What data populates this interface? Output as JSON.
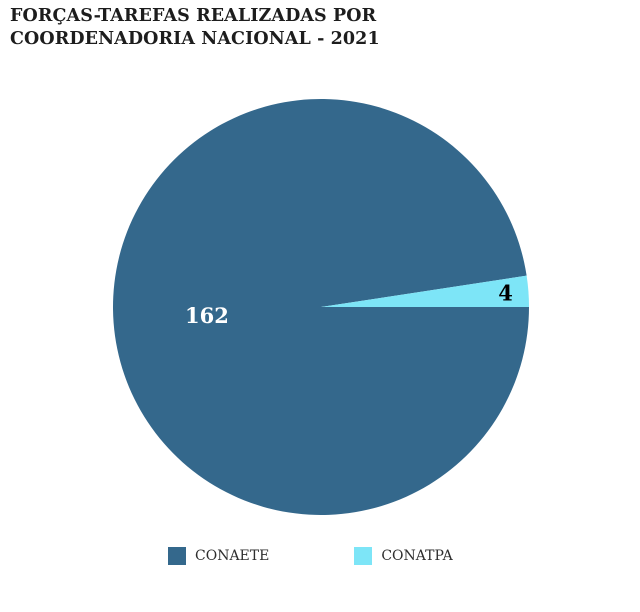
{
  "title": "FORÇAS-TAREFAS REALIZADAS POR\nCOORDENADORIA NACIONAL - 2021",
  "chart_data": {
    "type": "pie",
    "title": "FORÇAS-TAREFAS REALIZADAS POR COORDENADORIA NACIONAL - 2021",
    "labels": [
      "CONAETE",
      "CONATPA"
    ],
    "values": [
      162,
      4
    ],
    "total": 166,
    "value_labels": [
      "162",
      "4"
    ],
    "colors": [
      "#34688C",
      "#7DE5F7"
    ],
    "value_label_colors": [
      "#FFFFFF",
      "#000000"
    ],
    "rotation_deg": 90,
    "direction": "clockwise",
    "label_radius_frac": [
      0.55,
      0.89
    ],
    "value_label_font_px": 21,
    "legend_position": "bottom",
    "background": "#FFFFFF",
    "grid": false
  }
}
